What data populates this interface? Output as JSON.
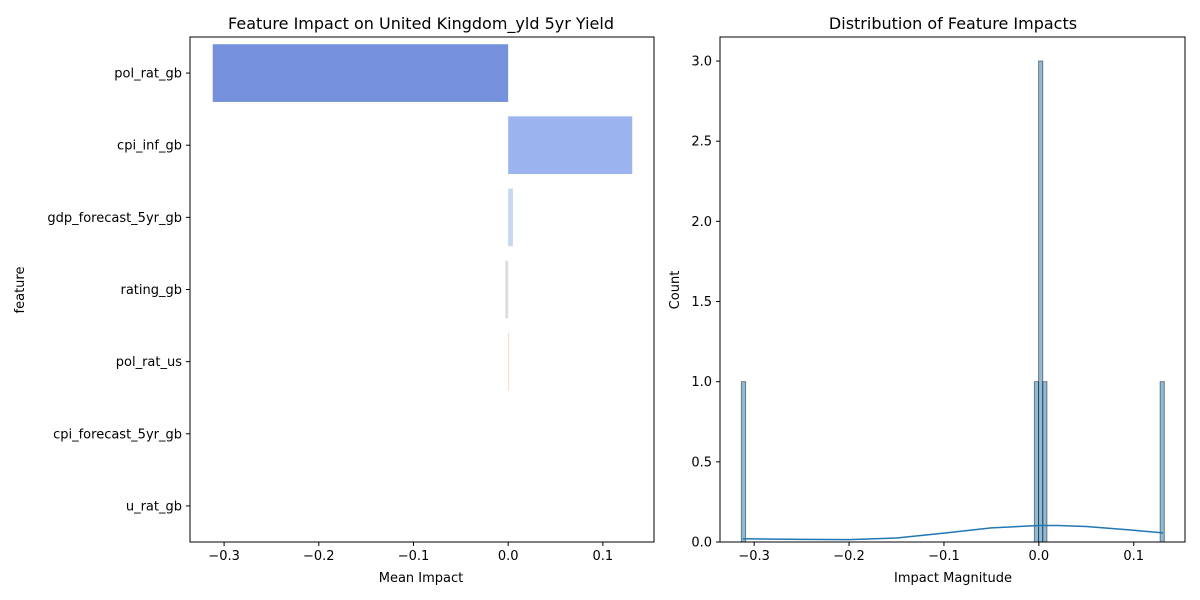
{
  "chart_data": [
    {
      "type": "bar",
      "orientation": "horizontal",
      "title": "Feature Impact on United Kingdom_yld 5yr Yield",
      "xlabel": "Mean Impact",
      "ylabel": "feature",
      "categories": [
        "pol_rat_gb",
        "cpi_inf_gb",
        "gdp_forecast_5yr_gb",
        "rating_gb",
        "pol_rat_us",
        "cpi_forecast_5yr_gb",
        "u_rat_gb"
      ],
      "values": [
        -0.312,
        0.131,
        0.005,
        -0.003,
        0.001,
        0.0,
        0.0
      ],
      "colors": [
        "#7591db",
        "#9bb4f0",
        "#c7d7f0",
        "#dddcdc",
        "#eed9c8",
        "#f3c4a8",
        "#f0a07f"
      ],
      "xlim": [
        -0.336,
        0.154
      ],
      "xticks": [
        -0.3,
        -0.2,
        -0.1,
        0.0,
        0.1
      ],
      "xtick_labels": [
        "−0.3",
        "−0.2",
        "−0.1",
        "0.0",
        "0.1"
      ],
      "grid": false
    },
    {
      "type": "histogram",
      "title": "Distribution of Feature Impacts",
      "xlabel": "Impact Magnitude",
      "ylabel": "Count",
      "bins": [
        {
          "x0": -0.3135,
          "x1": -0.309,
          "count": 1
        },
        {
          "x0": -0.0047,
          "x1": -0.0003,
          "count": 1
        },
        {
          "x0": -0.0003,
          "x1": 0.0041,
          "count": 3
        },
        {
          "x0": 0.0041,
          "x1": 0.0085,
          "count": 1
        },
        {
          "x0": 0.1278,
          "x1": 0.1322,
          "count": 1
        }
      ],
      "kde": {
        "x": [
          -0.312,
          -0.28,
          -0.25,
          -0.2,
          -0.15,
          -0.1,
          -0.05,
          0.0,
          0.02,
          0.05,
          0.08,
          0.1,
          0.131
        ],
        "y": [
          0.02,
          0.018,
          0.016,
          0.015,
          0.025,
          0.055,
          0.088,
          0.103,
          0.103,
          0.097,
          0.083,
          0.073,
          0.057
        ]
      },
      "bar_color": "#1f77b4",
      "line_color": "#1f77b4",
      "xlim": [
        -0.336,
        0.154
      ],
      "ylim": [
        0,
        3.15
      ],
      "xticks": [
        -0.3,
        -0.2,
        -0.1,
        0.0,
        0.1
      ],
      "xtick_labels": [
        "−0.3",
        "−0.2",
        "−0.1",
        "0.0",
        "0.1"
      ],
      "yticks": [
        0,
        0.5,
        1.0,
        1.5,
        2.0,
        2.5,
        3.0
      ],
      "ytick_labels": [
        "0.0",
        "0.5",
        "1.0",
        "1.5",
        "2.0",
        "2.5",
        "3.0"
      ],
      "grid": false
    }
  ]
}
